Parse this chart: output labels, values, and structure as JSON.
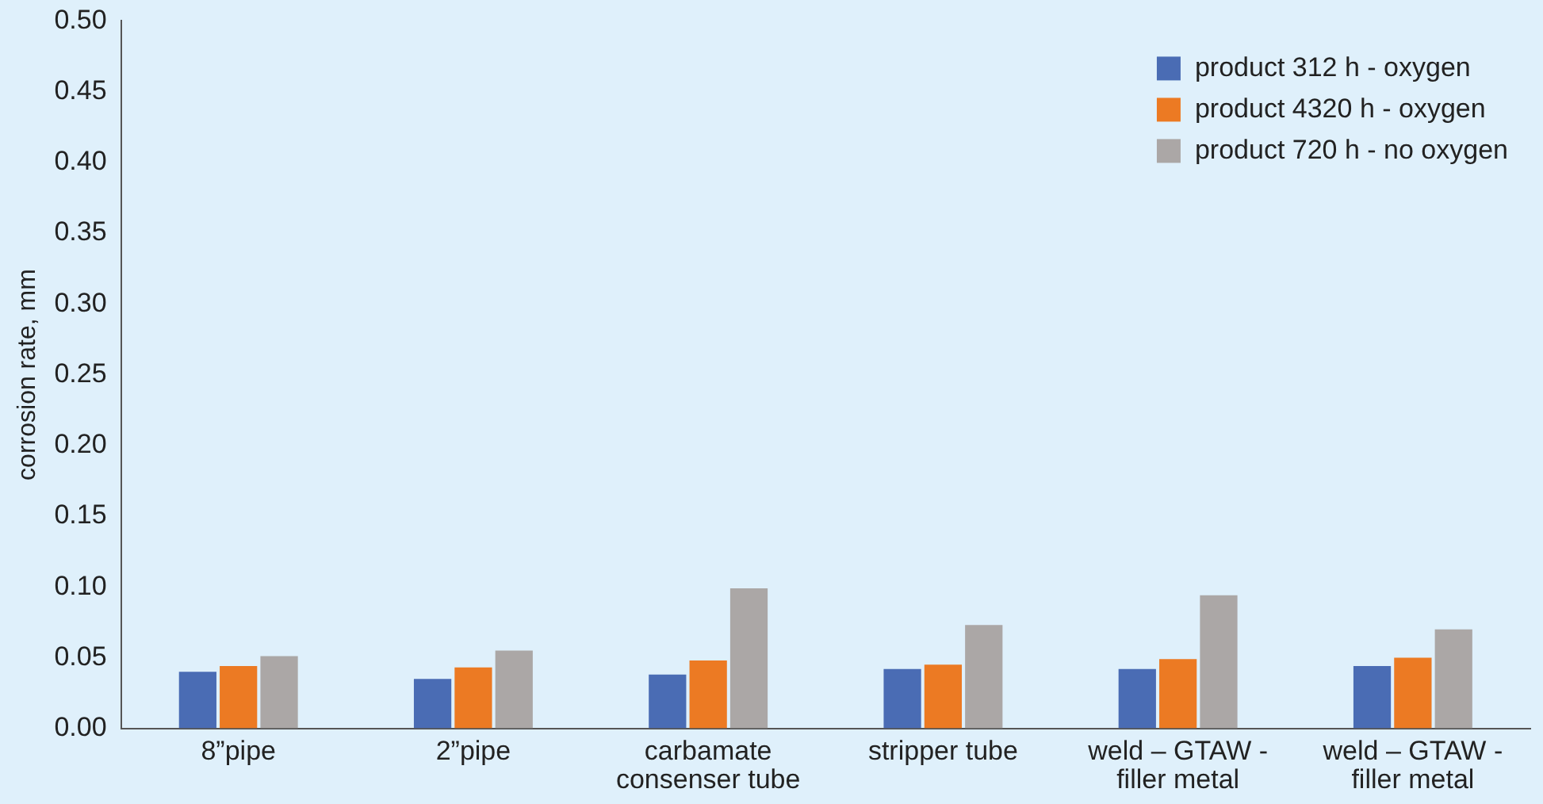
{
  "chart_data": {
    "type": "bar",
    "ylabel": "corrosion rate, mm",
    "categories": [
      "8”pipe",
      "2”pipe",
      "carbamate consenser tube",
      "stripper tube",
      "weld – GTAW - filler metal",
      "weld – GTAW - filler metal"
    ],
    "series": [
      {
        "name": "product 312 h - oxygen",
        "color": "#4a6cb4",
        "values": [
          0.04,
          0.035,
          0.038,
          0.042,
          0.042,
          0.044
        ]
      },
      {
        "name": "product 4320 h - oxygen",
        "color": "#ec7a23",
        "values": [
          0.044,
          0.043,
          0.048,
          0.045,
          0.049,
          0.05
        ]
      },
      {
        "name": "product 720 h - no oxygen",
        "color": "#aba7a6",
        "values": [
          0.051,
          0.055,
          0.099,
          0.073,
          0.094,
          0.07
        ]
      }
    ],
    "ylim": [
      0,
      0.5
    ],
    "yticks": [
      {
        "value": 0,
        "label": "0.00"
      },
      {
        "value": 0.05,
        "label": "0.05"
      },
      {
        "value": 0.1,
        "label": "0.10"
      },
      {
        "value": 0.15,
        "label": "0.15"
      },
      {
        "value": 0.2,
        "label": "0.20"
      },
      {
        "value": 0.25,
        "label": "0.25"
      },
      {
        "value": 0.3,
        "label": "0.30"
      },
      {
        "value": 0.35,
        "label": "0.35"
      },
      {
        "value": 0.4,
        "label": "0.40"
      },
      {
        "value": 0.45,
        "label": "0.45"
      },
      {
        "value": 0.5,
        "label": "0.50"
      }
    ],
    "grid": false,
    "legend": "top right"
  }
}
